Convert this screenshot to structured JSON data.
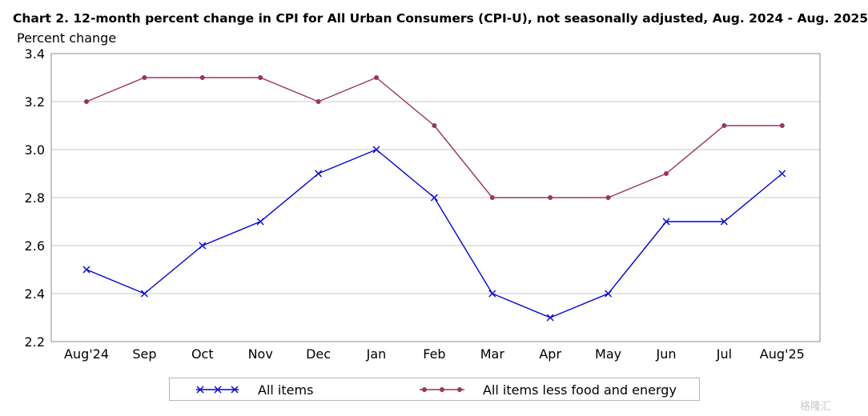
{
  "header": {
    "title": "Chart 2. 12-month percent change in CPI for All Urban Consumers (CPI-U), not seasonally adjusted, Aug. 2024 - Aug. 2025"
  },
  "watermark": "格隆汇",
  "chart_data": {
    "type": "line",
    "title": "Chart 2. 12-month percent change in CPI for All Urban Consumers (CPI-U), not seasonally adjusted, Aug. 2024 - Aug. 2025",
    "ylabel": "Percent change",
    "xlabel": "",
    "categories": [
      "Aug'24",
      "Sep",
      "Oct",
      "Nov",
      "Dec",
      "Jan",
      "Feb",
      "Mar",
      "Apr",
      "May",
      "Jun",
      "Jul",
      "Aug'25"
    ],
    "ylim": [
      2.2,
      3.4
    ],
    "yticks": [
      "2.2",
      "2.4",
      "2.6",
      "2.8",
      "3.0",
      "3.2",
      "3.4"
    ],
    "grid": true,
    "legend_position": "bottom",
    "series": [
      {
        "name": "All items",
        "color": "#0000e6",
        "marker": "x",
        "values": [
          2.5,
          2.4,
          2.6,
          2.7,
          2.9,
          3.0,
          2.8,
          2.4,
          2.3,
          2.4,
          2.7,
          2.7,
          2.9
        ]
      },
      {
        "name": "All items less food and energy",
        "color": "#993366",
        "marker": "dot",
        "values": [
          3.2,
          3.3,
          3.3,
          3.3,
          3.2,
          3.3,
          3.1,
          2.8,
          2.8,
          2.8,
          2.9,
          3.1,
          3.1
        ]
      }
    ]
  }
}
